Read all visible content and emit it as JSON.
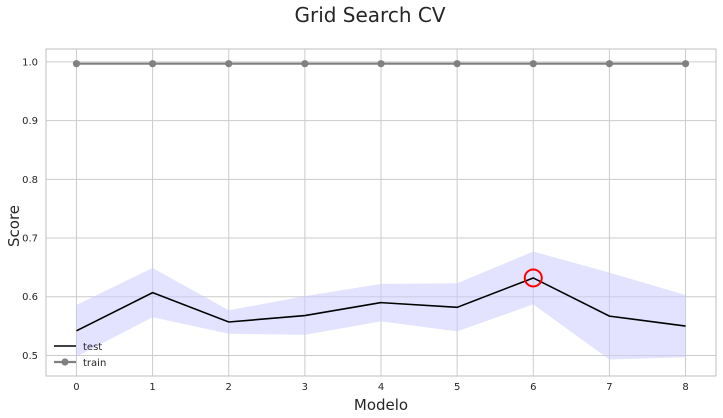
{
  "chart_data": {
    "type": "line",
    "title": "Grid Search CV",
    "xlabel": "Modelo",
    "ylabel": "Score",
    "x": [
      0,
      1,
      2,
      3,
      4,
      5,
      6,
      7,
      8
    ],
    "xlim": [
      -0.4,
      8.4
    ],
    "ylim": [
      0.465,
      1.022
    ],
    "x_ticks": [
      0,
      1,
      2,
      3,
      4,
      5,
      6,
      7,
      8
    ],
    "y_ticks": [
      0.5,
      0.6,
      0.7,
      0.8,
      0.9,
      1.0
    ],
    "y_tick_labels": [
      "0.5",
      "0.6",
      "0.7",
      "0.8",
      "0.9",
      "1.0"
    ],
    "grid": true,
    "legend_position": "bottom-left",
    "series": [
      {
        "name": "test",
        "color": "#000000",
        "values": [
          0.542,
          0.607,
          0.557,
          0.568,
          0.59,
          0.582,
          0.632,
          0.567,
          0.55
        ],
        "band_lower": [
          0.498,
          0.565,
          0.537,
          0.535,
          0.558,
          0.541,
          0.587,
          0.493,
          0.497
        ],
        "band_upper": [
          0.586,
          0.649,
          0.577,
          0.601,
          0.622,
          0.623,
          0.677,
          0.641,
          0.603
        ],
        "band_color": "#ccccff"
      },
      {
        "name": "train",
        "color": "#808080",
        "marker": "circle",
        "values": [
          0.997,
          0.997,
          0.997,
          0.997,
          0.997,
          0.997,
          0.997,
          0.997,
          0.997
        ]
      }
    ],
    "highlight": {
      "x": 6,
      "y": 0.632,
      "color": "#ff0000"
    }
  }
}
